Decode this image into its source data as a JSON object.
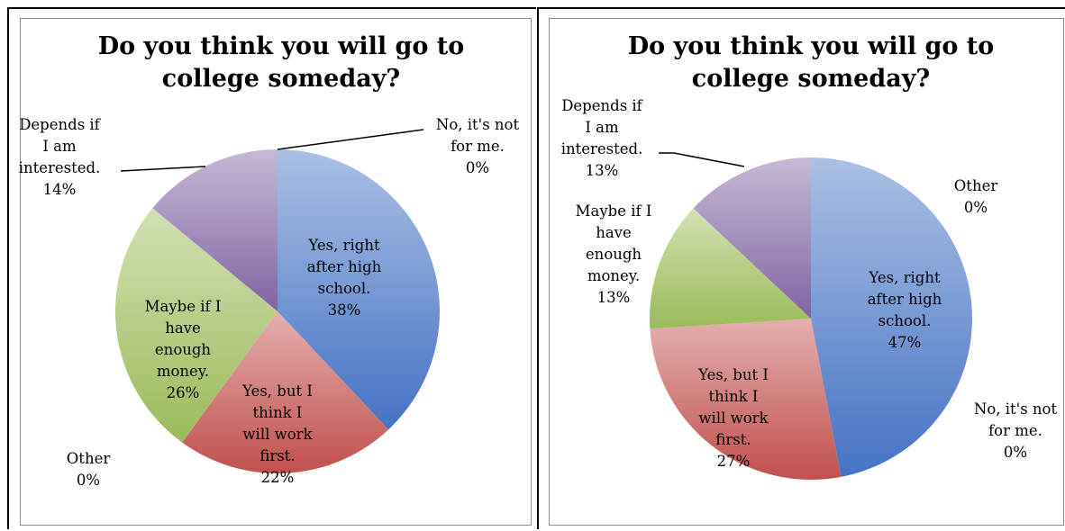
{
  "chart_data": [
    {
      "type": "pie",
      "title": "Do you think you will go to college someday?",
      "slices": [
        {
          "label": "Yes, right after high school.",
          "value": 38,
          "pct": "38%",
          "color": "#4472c4"
        },
        {
          "label": "Yes, but I think I will work first.",
          "value": 22,
          "pct": "22%",
          "color": "#c0504d"
        },
        {
          "label": "Other",
          "value": 0,
          "pct": "0%",
          "color": "#4bacc6"
        },
        {
          "label": "Maybe if I have enough money.",
          "value": 26,
          "pct": "26%",
          "color": "#9bbb59"
        },
        {
          "label": "Depends if I am interested.",
          "value": 14,
          "pct": "14%",
          "color": "#8064a2"
        },
        {
          "label": "No, it's not for me.",
          "value": 0,
          "pct": "0%",
          "color": "#f79646"
        }
      ]
    },
    {
      "type": "pie",
      "title": "Do you think you will go to college someday?",
      "slices": [
        {
          "label": "Yes, right after high school.",
          "value": 47,
          "pct": "47%",
          "color": "#4472c4"
        },
        {
          "label": "No, it's not for me.",
          "value": 0,
          "pct": "0%",
          "color": "#f79646"
        },
        {
          "label": "Yes, but I think I will work first.",
          "value": 27,
          "pct": "27%",
          "color": "#c0504d"
        },
        {
          "label": "Maybe if I have enough money.",
          "value": 13,
          "pct": "13%",
          "color": "#9bbb59"
        },
        {
          "label": "Depends if I am interested.",
          "value": 13,
          "pct": "13%",
          "color": "#8064a2"
        },
        {
          "label": "Other",
          "value": 0,
          "pct": "0%",
          "color": "#4bacc6"
        }
      ]
    }
  ]
}
